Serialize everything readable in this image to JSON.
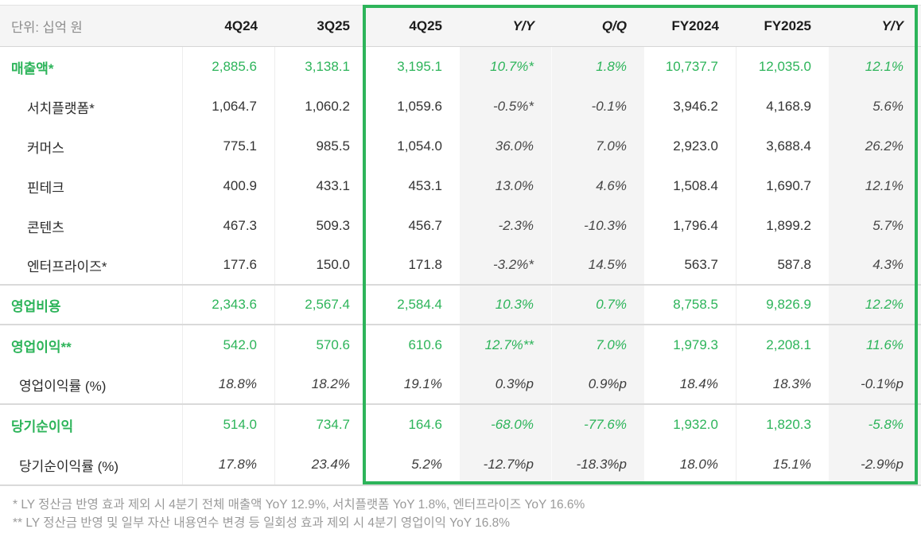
{
  "colors": {
    "accent_green": "#2db45a",
    "highlight_border": "#2db45a",
    "header_bg": "#f5f5f5",
    "pct_column_bg": "#f4f4f4",
    "footnote_gray": "#9a9a9a"
  },
  "chart_data": {
    "type": "table",
    "unit_label": "단위: 십억 원",
    "columns": [
      "4Q24",
      "3Q25",
      "4Q25",
      "Y/Y",
      "Q/Q",
      "FY2024",
      "FY2025",
      "Y/Y"
    ],
    "highlighted_columns": [
      "4Q25",
      "Y/Y",
      "Q/Q",
      "FY2024",
      "FY2025",
      "Y/Y"
    ],
    "rows": [
      {
        "label": "매출액*",
        "style": "total",
        "separator_after": false,
        "values": [
          "2,885.6",
          "3,138.1",
          "3,195.1",
          "10.7%*",
          "1.8%",
          "10,737.7",
          "12,035.0",
          "12.1%"
        ]
      },
      {
        "label": "서치플랫폼*",
        "style": "sub",
        "separator_after": false,
        "values": [
          "1,064.7",
          "1,060.2",
          "1,059.6",
          "-0.5%*",
          "-0.1%",
          "3,946.2",
          "4,168.9",
          "5.6%"
        ]
      },
      {
        "label": "커머스",
        "style": "sub",
        "separator_after": false,
        "values": [
          "775.1",
          "985.5",
          "1,054.0",
          "36.0%",
          "7.0%",
          "2,923.0",
          "3,688.4",
          "26.2%"
        ]
      },
      {
        "label": "핀테크",
        "style": "sub",
        "separator_after": false,
        "values": [
          "400.9",
          "433.1",
          "453.1",
          "13.0%",
          "4.6%",
          "1,508.4",
          "1,690.7",
          "12.1%"
        ]
      },
      {
        "label": "콘텐츠",
        "style": "sub",
        "separator_after": false,
        "values": [
          "467.3",
          "509.3",
          "456.7",
          "-2.3%",
          "-10.3%",
          "1,796.4",
          "1,899.2",
          "5.7%"
        ]
      },
      {
        "label": "엔터프라이즈*",
        "style": "sub",
        "separator_after": true,
        "values": [
          "177.6",
          "150.0",
          "171.8",
          "-3.2%*",
          "14.5%",
          "563.7",
          "587.8",
          "4.3%"
        ]
      },
      {
        "label": "영업비용",
        "style": "total",
        "separator_after": true,
        "values": [
          "2,343.6",
          "2,567.4",
          "2,584.4",
          "10.3%",
          "0.7%",
          "8,758.5",
          "9,826.9",
          "12.2%"
        ]
      },
      {
        "label": "영업이익**",
        "style": "total",
        "separator_after": false,
        "values": [
          "542.0",
          "570.6",
          "610.6",
          "12.7%**",
          "7.0%",
          "1,979.3",
          "2,208.1",
          "11.6%"
        ]
      },
      {
        "label": "영업이익률 (%)",
        "style": "ratio",
        "separator_after": true,
        "values": [
          "18.8%",
          "18.2%",
          "19.1%",
          "0.3%p",
          "0.9%p",
          "18.4%",
          "18.3%",
          "-0.1%p"
        ]
      },
      {
        "label": "당기순이익",
        "style": "total",
        "separator_after": false,
        "values": [
          "514.0",
          "734.7",
          "164.6",
          "-68.0%",
          "-77.6%",
          "1,932.0",
          "1,820.3",
          "-5.8%"
        ]
      },
      {
        "label": "당기순이익률 (%)",
        "style": "ratio",
        "separator_after": false,
        "values": [
          "17.8%",
          "23.4%",
          "5.2%",
          "-12.7%p",
          "-18.3%p",
          "18.0%",
          "15.1%",
          "-2.9%p"
        ]
      }
    ]
  },
  "footnotes": [
    "* LY 정산금 반영 효과 제외 시 4분기 전체 매출액 YoY 12.9%, 서치플랫폼 YoY 1.8%, 엔터프라이즈 YoY 16.6%",
    "** LY 정산금 반영 및 일부 자산 내용연수 변경 등 일회성 효과 제외 시 4분기 영업이익 YoY 16.8%"
  ]
}
